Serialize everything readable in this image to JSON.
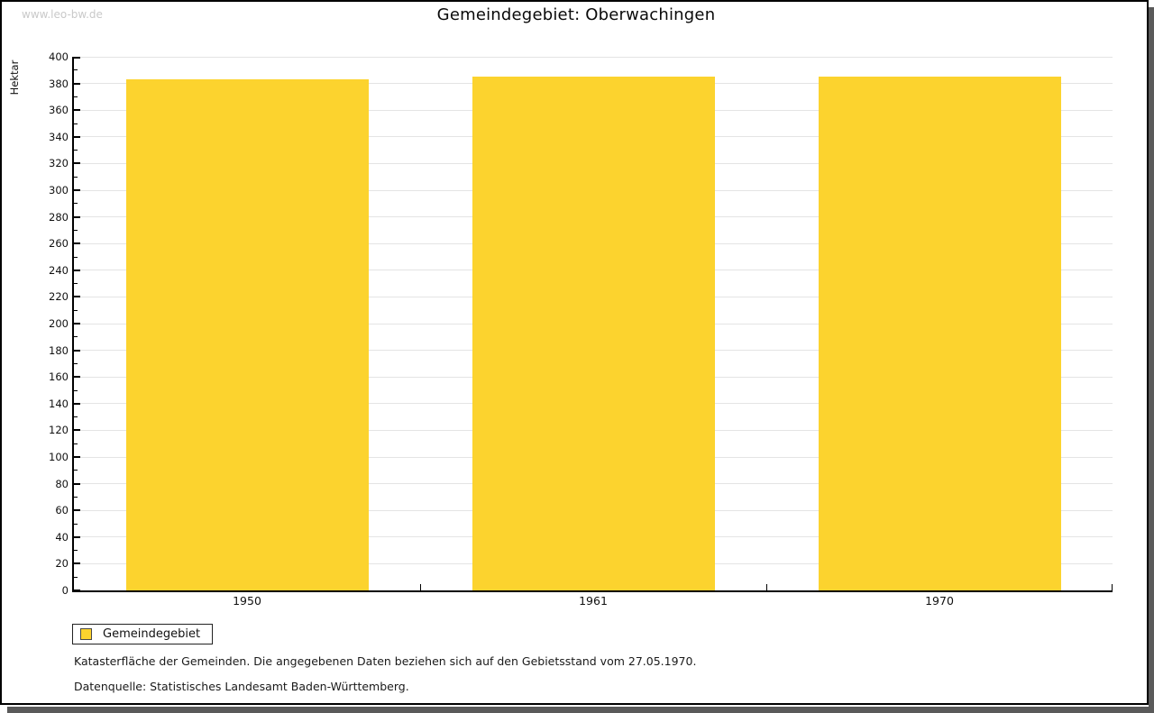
{
  "watermark": "www.leo-bw.de",
  "title": "Gemeindegebiet: Oberwachingen",
  "chart_data": {
    "type": "bar",
    "title": "Gemeindegebiet: Oberwachingen",
    "categories": [
      "1950",
      "1961",
      "1970"
    ],
    "series": [
      {
        "name": "Gemeindegebiet",
        "values": [
          383,
          385,
          385
        ]
      }
    ],
    "xlabel": "",
    "ylabel": "Hektar",
    "ylim": [
      0,
      400
    ],
    "ytick_step": 20,
    "minor_tick_step": 10,
    "grid": true,
    "bar_color": "#FCD32E",
    "legend_position": "below-left"
  },
  "legend": {
    "items": [
      {
        "label": "Gemeindegebiet",
        "color": "#FCD32E"
      }
    ]
  },
  "footnotes": [
    "Katasterfläche der Gemeinden. Die angegebenen Daten beziehen sich auf den Gebietsstand vom 27.05.1970.",
    "Datenquelle: Statistisches Landesamt Baden-Württemberg."
  ],
  "colors": {
    "bar": "#FCD32E",
    "gridline": "#e4e4e4",
    "axis": "#000000",
    "shadow": "#5a5a5a",
    "watermark": "#c9c9c9"
  }
}
